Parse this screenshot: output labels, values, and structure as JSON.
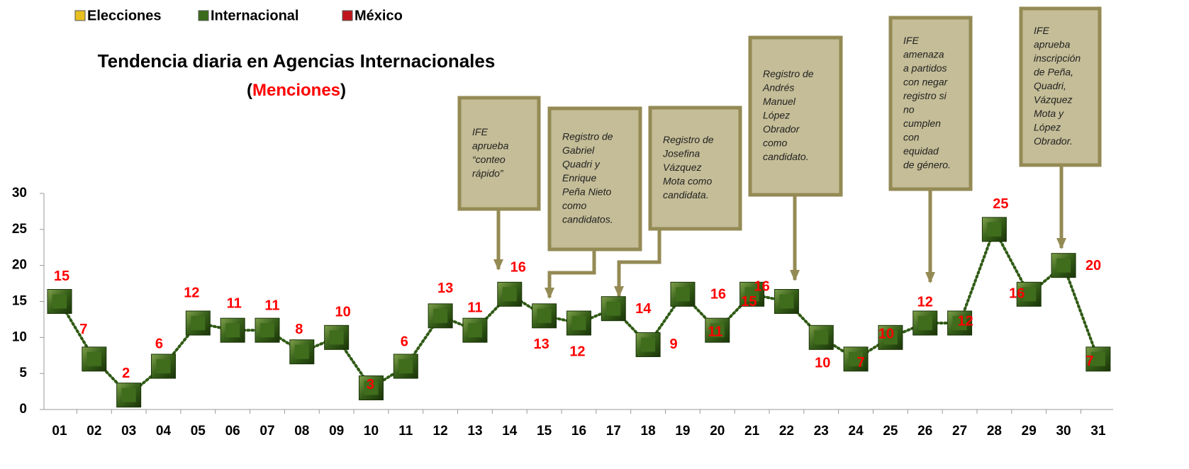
{
  "chart_data": {
    "type": "line",
    "title": "Tendencia diaria en Agencias Internacionales",
    "subtitle": [
      "(",
      "Menciones",
      ")"
    ],
    "legend": [
      {
        "name": "Elecciones",
        "color": "#e8c020"
      },
      {
        "name": "Internacional",
        "color": "#3a6b1a"
      },
      {
        "name": "México",
        "color": "#c0141c"
      }
    ],
    "categories": [
      "01",
      "02",
      "03",
      "04",
      "05",
      "06",
      "07",
      "08",
      "09",
      "10",
      "11",
      "12",
      "13",
      "14",
      "15",
      "16",
      "17",
      "18",
      "19",
      "20",
      "21",
      "22",
      "23",
      "24",
      "25",
      "26",
      "27",
      "28",
      "29",
      "30",
      "31"
    ],
    "series": [
      {
        "name": "Internacional",
        "color": "#2f5a14",
        "values": [
          15,
          7,
          2,
          6,
          12,
          11,
          11,
          8,
          10,
          3,
          6,
          13,
          11,
          16,
          13,
          12,
          14,
          9,
          16,
          11,
          16,
          15,
          10,
          7,
          10,
          12,
          12,
          25,
          16,
          20,
          7
        ]
      }
    ],
    "label_color": "#ff0000",
    "ylim": [
      0,
      30
    ],
    "yticks": [
      0,
      5,
      10,
      15,
      20,
      25,
      30
    ],
    "annotations": [
      {
        "lines": [
          "IFE",
          "aprueba",
          "“conteo",
          "rápido”"
        ]
      },
      {
        "lines": [
          "Registro de",
          "Gabriel",
          "Quadri y",
          "Enrique",
          "Peña Nieto",
          "como",
          "candidatos."
        ]
      },
      {
        "lines": [
          "Registro de",
          "Josefina",
          "Vázquez",
          "Mota como",
          "candidata."
        ]
      },
      {
        "lines": [
          "Registro de",
          "Andrés",
          "Manuel",
          "López",
          "Obrador",
          "como",
          "candidato."
        ]
      },
      {
        "lines": [
          "IFE",
          "amenaza",
          "a partidos",
          "con negar",
          "registro si",
          "no",
          "cumplen",
          "con",
          "equidad",
          "de género."
        ]
      },
      {
        "lines": [
          "IFE",
          "aprueba",
          "inscripción",
          "de Peña,",
          "Quadri,",
          "Vázquez",
          "Mota y",
          "López",
          "Obrador."
        ]
      }
    ]
  }
}
